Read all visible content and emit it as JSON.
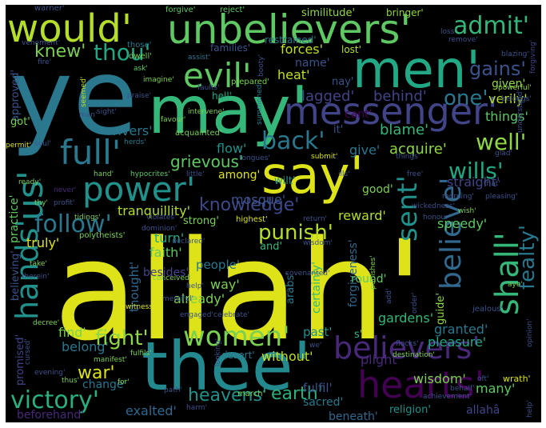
{
  "words": [
    {
      "text": "allah'",
      "color": "#dde318"
    },
    {
      "text": "ye",
      "color": "#2a788e"
    },
    {
      "text": "thee'",
      "color": "#23898e"
    },
    {
      "text": "may'",
      "color": "#35b779"
    },
    {
      "text": "men'",
      "color": "#22a884"
    },
    {
      "text": "say'",
      "color": "#dde318"
    },
    {
      "text": "unbelievers'",
      "color": "#5ec962"
    },
    {
      "text": "would'",
      "color": "#b5de2b"
    },
    {
      "text": "messenger'",
      "color": "#414487"
    },
    {
      "text": "hearts'",
      "color": "#440154"
    },
    {
      "text": "believers'",
      "color": "#482878"
    },
    {
      "text": "shall'",
      "color": "#35b779"
    },
    {
      "text": "power'",
      "color": "#21918c"
    },
    {
      "text": "full'",
      "color": "#2a788e"
    },
    {
      "text": "evil'",
      "color": "#5ec962"
    },
    {
      "text": "us'",
      "color": "#21918c"
    },
    {
      "text": "hands'",
      "color": "#21918c"
    },
    {
      "text": "women'",
      "color": "#7ad151"
    },
    {
      "text": "victory'",
      "color": "#2ab07f"
    },
    {
      "text": "follow'",
      "color": "#2a788e"
    },
    {
      "text": "believe'",
      "color": "#31688e"
    },
    {
      "text": "sent'",
      "color": "#21918c"
    },
    {
      "text": "admit'",
      "color": "#35b779"
    },
    {
      "text": "well'",
      "color": "#8fd744"
    },
    {
      "text": "wills'",
      "color": "#22a884"
    },
    {
      "text": "back'",
      "color": "#2a788e"
    },
    {
      "text": "thou'",
      "color": "#22a884"
    },
    {
      "text": "one'",
      "color": "#2a788e"
    },
    {
      "text": "gains'",
      "color": "#3b528b"
    },
    {
      "text": "knew'",
      "color": "#7ad151"
    },
    {
      "text": "grievous'",
      "color": "#5ec962"
    },
    {
      "text": "knowledge'",
      "color": "#3e4989"
    },
    {
      "text": "punish'",
      "color": "#b5de2b"
    },
    {
      "text": "fealty'",
      "color": "#2a788e"
    },
    {
      "text": "fight'",
      "color": "#8fd744"
    },
    {
      "text": "war'",
      "color": "#dde318"
    },
    {
      "text": "earth'",
      "color": "#2ab07f"
    },
    {
      "text": "heavens'",
      "color": "#21918c"
    },
    {
      "text": "lagged'",
      "color": "#414487"
    },
    {
      "text": "behind'",
      "color": "#414487"
    },
    {
      "text": "verily'",
      "color": "#b5de2b"
    },
    {
      "text": "given'",
      "color": "#8fd744"
    },
    {
      "text": "forces'",
      "color": "#c2df23"
    },
    {
      "text": "heat'",
      "color": "#c2df23"
    },
    {
      "text": "name'",
      "color": "#3b528b"
    },
    {
      "text": "restrained'",
      "color": "#2a788e"
    },
    {
      "text": "families'",
      "color": "#3b528b"
    },
    {
      "text": "lost'",
      "color": "#b5de2b"
    },
    {
      "text": "similitude'",
      "color": "#8fd744"
    },
    {
      "text": "bringer'",
      "color": "#8fd744"
    },
    {
      "text": "forgive'",
      "color": "#5ec962"
    },
    {
      "text": "reject'",
      "color": "#5ec962"
    },
    {
      "text": "warner'",
      "color": "#3b528b"
    },
    {
      "text": "approved'",
      "color": "#3b528b"
    },
    {
      "text": "got'",
      "color": "#7ad151"
    },
    {
      "text": "rivers'",
      "color": "#2a788e"
    },
    {
      "text": "things'",
      "color": "#5ec962"
    },
    {
      "text": "blame'",
      "color": "#35b779"
    },
    {
      "text": "acquire'",
      "color": "#8fd744"
    },
    {
      "text": "give'",
      "color": "#2a788e"
    },
    {
      "text": "flow'",
      "color": "#21918c"
    },
    {
      "text": "among'",
      "color": "#dde318"
    },
    {
      "text": "mosque'",
      "color": "#3b528b"
    },
    {
      "text": "tranquillity'",
      "color": "#b5de2b"
    },
    {
      "text": "good'",
      "color": "#7ad151"
    },
    {
      "text": "straight'",
      "color": "#414487"
    },
    {
      "text": "speedy'",
      "color": "#5ec962"
    },
    {
      "text": "reward'",
      "color": "#b5de2b"
    },
    {
      "text": "strong'",
      "color": "#7ad151"
    },
    {
      "text": "turn'",
      "color": "#22a884"
    },
    {
      "text": "faith'",
      "color": "#5ec962"
    },
    {
      "text": "people'",
      "color": "#2a788e"
    },
    {
      "text": "already'",
      "color": "#7ad151"
    },
    {
      "text": "way'",
      "color": "#7ad151"
    },
    {
      "text": "thought'",
      "color": "#31688e"
    },
    {
      "text": "besides'",
      "color": "#414487"
    },
    {
      "text": "truly'",
      "color": "#dde318"
    },
    {
      "text": "practice'",
      "color": "#5ec962"
    },
    {
      "text": "believing'",
      "color": "#3b528b"
    },
    {
      "text": "find'",
      "color": "#7ad151"
    },
    {
      "text": "belong'",
      "color": "#2a788e"
    },
    {
      "text": "promised'",
      "color": "#414487"
    },
    {
      "text": "change'",
      "color": "#2a788e"
    },
    {
      "text": "exalted'",
      "color": "#31688e"
    },
    {
      "text": "beforehand'",
      "color": "#482878"
    },
    {
      "text": "gardens'",
      "color": "#35b779"
    },
    {
      "text": "granted'",
      "color": "#2a788e"
    },
    {
      "text": "pleasure'",
      "color": "#22a884"
    },
    {
      "text": "wisdom'",
      "color": "#7ad151"
    },
    {
      "text": "plight'",
      "color": "#482878"
    },
    {
      "text": "fulfil'",
      "color": "#3b528b"
    },
    {
      "text": "sacred'",
      "color": "#2a788e"
    },
    {
      "text": "beneath'",
      "color": "#31688e"
    },
    {
      "text": "religion'",
      "color": "#21918c"
    },
    {
      "text": "many'",
      "color": "#5ec962"
    },
    {
      "text": "allahâ",
      "color": "#414487"
    },
    {
      "text": "without'",
      "color": "#c2df23"
    },
    {
      "text": "desert'",
      "color": "#2a788e"
    },
    {
      "text": "past'",
      "color": "#21918c"
    },
    {
      "text": "certainly'",
      "color": "#35b779"
    },
    {
      "text": "forgiveness'",
      "color": "#31688e"
    },
    {
      "text": "guide'",
      "color": "#8fd744"
    },
    {
      "text": "arabs'",
      "color": "#2a788e"
    },
    {
      "text": "round'",
      "color": "#5ec962"
    },
    {
      "text": "wilt'",
      "color": "#21918c"
    },
    {
      "text": "and'",
      "color": "#35b779"
    },
    {
      "text": "nay'",
      "color": "#3b528b"
    },
    {
      "text": "cant'",
      "color": "#440154"
    },
    {
      "text": "it'",
      "color": "#3b528b"
    },
    {
      "text": "s'",
      "color": "#35b779"
    },
    {
      "text": "hell'",
      "color": "#22a884"
    },
    {
      "text": "those'",
      "color": "#2a788e"
    },
    {
      "text": "dwell'",
      "color": "#7ad151"
    },
    {
      "text": "vehement'",
      "color": "#3b528b"
    },
    {
      "text": "fire'",
      "color": "#3b528b"
    },
    {
      "text": "ask'",
      "color": "#5ec962"
    },
    {
      "text": "assist'",
      "color": "#2a788e"
    },
    {
      "text": "booty'",
      "color": "#3b528b"
    },
    {
      "text": "loss'",
      "color": "#3b528b"
    },
    {
      "text": "remove'",
      "color": "#3b528b"
    },
    {
      "text": "blazing'",
      "color": "#3b528b"
    },
    {
      "text": "forgiving'",
      "color": "#414487"
    },
    {
      "text": "imagine'",
      "color": "#7ad151"
    },
    {
      "text": "faults'",
      "color": "#3b528b"
    },
    {
      "text": "prepared'",
      "color": "#7ad151"
    },
    {
      "text": "powerful'",
      "color": "#8fd744"
    },
    {
      "text": "belongs'",
      "color": "#3b528b"
    },
    {
      "text": "praise'",
      "color": "#3b528b"
    },
    {
      "text": "seemed'",
      "color": "#c2df23"
    },
    {
      "text": "summoned'",
      "color": "#2a788e"
    },
    {
      "text": "man'",
      "color": "#3b528b"
    },
    {
      "text": "sight'",
      "color": "#3b528b"
    },
    {
      "text": "acquainted'",
      "color": "#7ad151"
    },
    {
      "text": "favour'",
      "color": "#7ad151"
    },
    {
      "text": "intervene'",
      "color": "#7ad151"
    },
    {
      "text": "understand'",
      "color": "#3b528b"
    },
    {
      "text": "permit'",
      "color": "#dde318"
    },
    {
      "text": "soul'",
      "color": "#3b528b"
    },
    {
      "text": "herds'",
      "color": "#2a788e"
    },
    {
      "text": "tongues'",
      "color": "#3b528b"
    },
    {
      "text": "submit'",
      "color": "#dde318"
    },
    {
      "text": "things'",
      "color": "#3b528b"
    },
    {
      "text": "glad'",
      "color": "#3b528b"
    },
    {
      "text": "hand'",
      "color": "#7ad151"
    },
    {
      "text": "hypocrites'",
      "color": "#5ec962"
    },
    {
      "text": "little'",
      "color": "#3b528b"
    },
    {
      "text": "ills'",
      "color": "#3b528b"
    },
    {
      "text": "free'",
      "color": "#3b528b"
    },
    {
      "text": "that'",
      "color": "#3b528b"
    },
    {
      "text": "ready'",
      "color": "#7ad151"
    },
    {
      "text": "never'",
      "color": "#482878"
    },
    {
      "text": "morning'",
      "color": "#3b528b"
    },
    {
      "text": "pleasing'",
      "color": "#3b528b"
    },
    {
      "text": "thy'",
      "color": "#7ad151"
    },
    {
      "text": "profit'",
      "color": "#3b528b"
    },
    {
      "text": "tidings'",
      "color": "#7ad151"
    },
    {
      "text": "violates'",
      "color": "#3b528b"
    },
    {
      "text": "highest'",
      "color": "#dde318"
    },
    {
      "text": "wickedness'",
      "color": "#3b528b"
    },
    {
      "text": "honour'",
      "color": "#3b528b"
    },
    {
      "text": "return'",
      "color": "#3b528b"
    },
    {
      "text": "wish'",
      "color": "#7ad151"
    },
    {
      "text": "polytheists'",
      "color": "#7ad151"
    },
    {
      "text": "dominion'",
      "color": "#3b528b"
    },
    {
      "text": "take'",
      "color": "#7ad151"
    },
    {
      "text": "declared'",
      "color": "#3b528b"
    },
    {
      "text": "wisdom'",
      "color": "#3b528b"
    },
    {
      "text": "therein'",
      "color": "#3b528b"
    },
    {
      "text": "help'",
      "color": "#3b528b"
    },
    {
      "text": "conceived'",
      "color": "#7ad151"
    },
    {
      "text": "covenanted'",
      "color": "#3b528b"
    },
    {
      "text": "punishes'",
      "color": "#7ad151"
    },
    {
      "text": "witness'",
      "color": "#dde318"
    },
    {
      "text": "merciful'",
      "color": "#3b528b"
    },
    {
      "text": "add'",
      "color": "#3b528b"
    },
    {
      "text": "aye'",
      "color": "#7ad151"
    },
    {
      "text": "decree'",
      "color": "#7ad151"
    },
    {
      "text": "engaged'",
      "color": "#3b528b"
    },
    {
      "text": "celebrate'",
      "color": "#3b528b"
    },
    {
      "text": "jealous'",
      "color": "#3b528b"
    },
    {
      "text": "cursed'",
      "color": "#3b528b"
    },
    {
      "text": "we'",
      "color": "#3b528b"
    },
    {
      "text": "destination'",
      "color": "#7ad151"
    },
    {
      "text": "manifest'",
      "color": "#7ad151"
    },
    {
      "text": "fulfils'",
      "color": "#7ad151"
    },
    {
      "text": "looking'",
      "color": "#3b528b"
    },
    {
      "text": "flocks'",
      "color": "#3b528b"
    },
    {
      "text": "opinion'",
      "color": "#3b528b"
    },
    {
      "text": "evening'",
      "color": "#3b528b"
    },
    {
      "text": "thus'",
      "color": "#7ad151"
    },
    {
      "text": "for'",
      "color": "#7ad151"
    },
    {
      "text": "achievement'",
      "color": "#3b528b"
    },
    {
      "text": "behalf'",
      "color": "#3b528b"
    },
    {
      "text": "oft'",
      "color": "#3b528b"
    },
    {
      "text": "wrath'",
      "color": "#dde318"
    },
    {
      "text": "path'",
      "color": "#3b528b"
    },
    {
      "text": "harm'",
      "color": "#3b528b"
    },
    {
      "text": "march'",
      "color": "#7ad151"
    },
    {
      "text": "help'",
      "color": "#3b528b"
    },
    {
      "text": "order'",
      "color": "#3b528b"
    }
  ]
}
